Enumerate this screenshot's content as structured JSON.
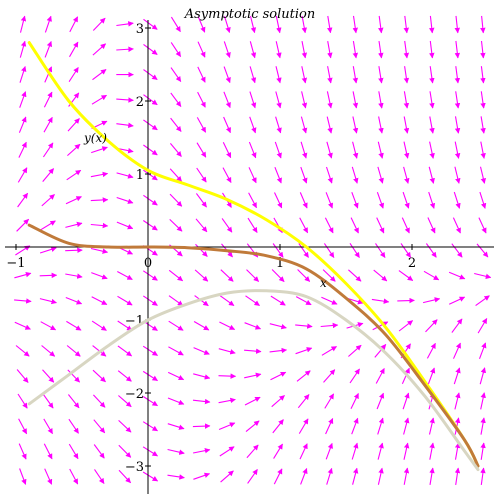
{
  "chart_data": {
    "type": "line",
    "title": "Asymptotic solution",
    "xlabel": "x",
    "ylabel": "y(x)",
    "xlim": [
      -1.0,
      2.6
    ],
    "ylim": [
      -3.3,
      3.1
    ],
    "x_ticks": [
      -1,
      0,
      1,
      2
    ],
    "y_ticks": [
      -3,
      -2,
      -1,
      1,
      2,
      3
    ],
    "x_tick_labels": [
      "−1",
      "0",
      "1",
      "2"
    ],
    "y_tick_labels": [
      "−3",
      "−2",
      "−1",
      "1",
      "2",
      "3"
    ],
    "grid": false,
    "field_color": "#ff00ff",
    "series": [
      {
        "color": "#ffff00",
        "x": [
          -0.9,
          -0.6,
          -0.3,
          0.0,
          0.3,
          0.6,
          0.9,
          1.2,
          1.5,
          1.8,
          2.1,
          2.4,
          2.5
        ],
        "y": [
          2.8,
          2.0,
          1.45,
          1.05,
          0.85,
          0.65,
          0.37,
          0.0,
          -0.5,
          -1.1,
          -1.85,
          -2.65,
          -3.0
        ]
      },
      {
        "color": "#c07a3a",
        "x": [
          -0.9,
          -0.6,
          -0.3,
          0.0,
          0.3,
          0.6,
          0.9,
          1.2,
          1.5,
          1.8,
          2.1,
          2.4,
          2.5
        ],
        "y": [
          0.3,
          0.05,
          0.0,
          0.0,
          -0.01,
          -0.05,
          -0.12,
          -0.3,
          -0.7,
          -1.2,
          -1.9,
          -2.65,
          -3.0
        ]
      },
      {
        "color": "#d8d6c2",
        "x": [
          -0.9,
          -0.6,
          -0.3,
          0.0,
          0.3,
          0.6,
          0.9,
          1.2,
          1.5,
          1.8,
          2.1,
          2.4,
          2.5
        ],
        "y": [
          -2.15,
          -1.75,
          -1.35,
          -1.0,
          -0.78,
          -0.63,
          -0.6,
          -0.68,
          -1.0,
          -1.45,
          -2.05,
          -2.8,
          -3.05
        ]
      }
    ]
  }
}
